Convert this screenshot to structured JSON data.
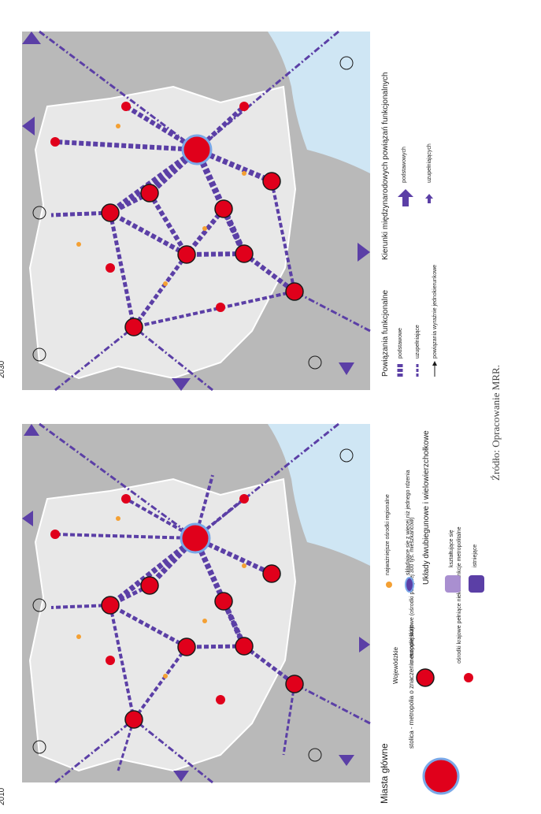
{
  "years": {
    "left": "2010",
    "right": "2030"
  },
  "source_note": "Źródło: Opracowanie MRR.",
  "legend_main": {
    "title": "Miasta główne",
    "capital": "stolica - metropolia o znaczeniu europejskim",
    "voivodeship_label": "Wojewódzkie",
    "national_metropolis": "metropolie krajowe (ośrodki powyżej 300 tys. mieszkańców)",
    "national_centres": "ośrodki krajowe pełniące niektóre funkcje metropolitalne",
    "regional_centres": "najważniejsze ośrodki regionalne",
    "multi_centres": "składające się z więcej niż jednego rdzenia",
    "bipolar_title": "Układy dwubiegunowe i wielowierzchołkowe",
    "forming": "kształtujące się",
    "existing": "istniejące"
  },
  "legend_links": {
    "title": "Powiązania funkcjonalne",
    "basic": "podstawowe",
    "supplementary": "uzupełniające",
    "one_way": "powiązania wyraźnie jednokierunkowe"
  },
  "legend_directions": {
    "title": "Kierunki międzynarodowych powiązań funkcjonalnych",
    "basic": "podstawowych",
    "supplementary": "uzupełniających"
  },
  "colors": {
    "sea": "#cfe6f4",
    "land_out": "#b9b9b9",
    "land_in": "#e8e8e8",
    "link": "#5b3fa6",
    "node": "#e0001b",
    "regional": "#f4a033"
  }
}
